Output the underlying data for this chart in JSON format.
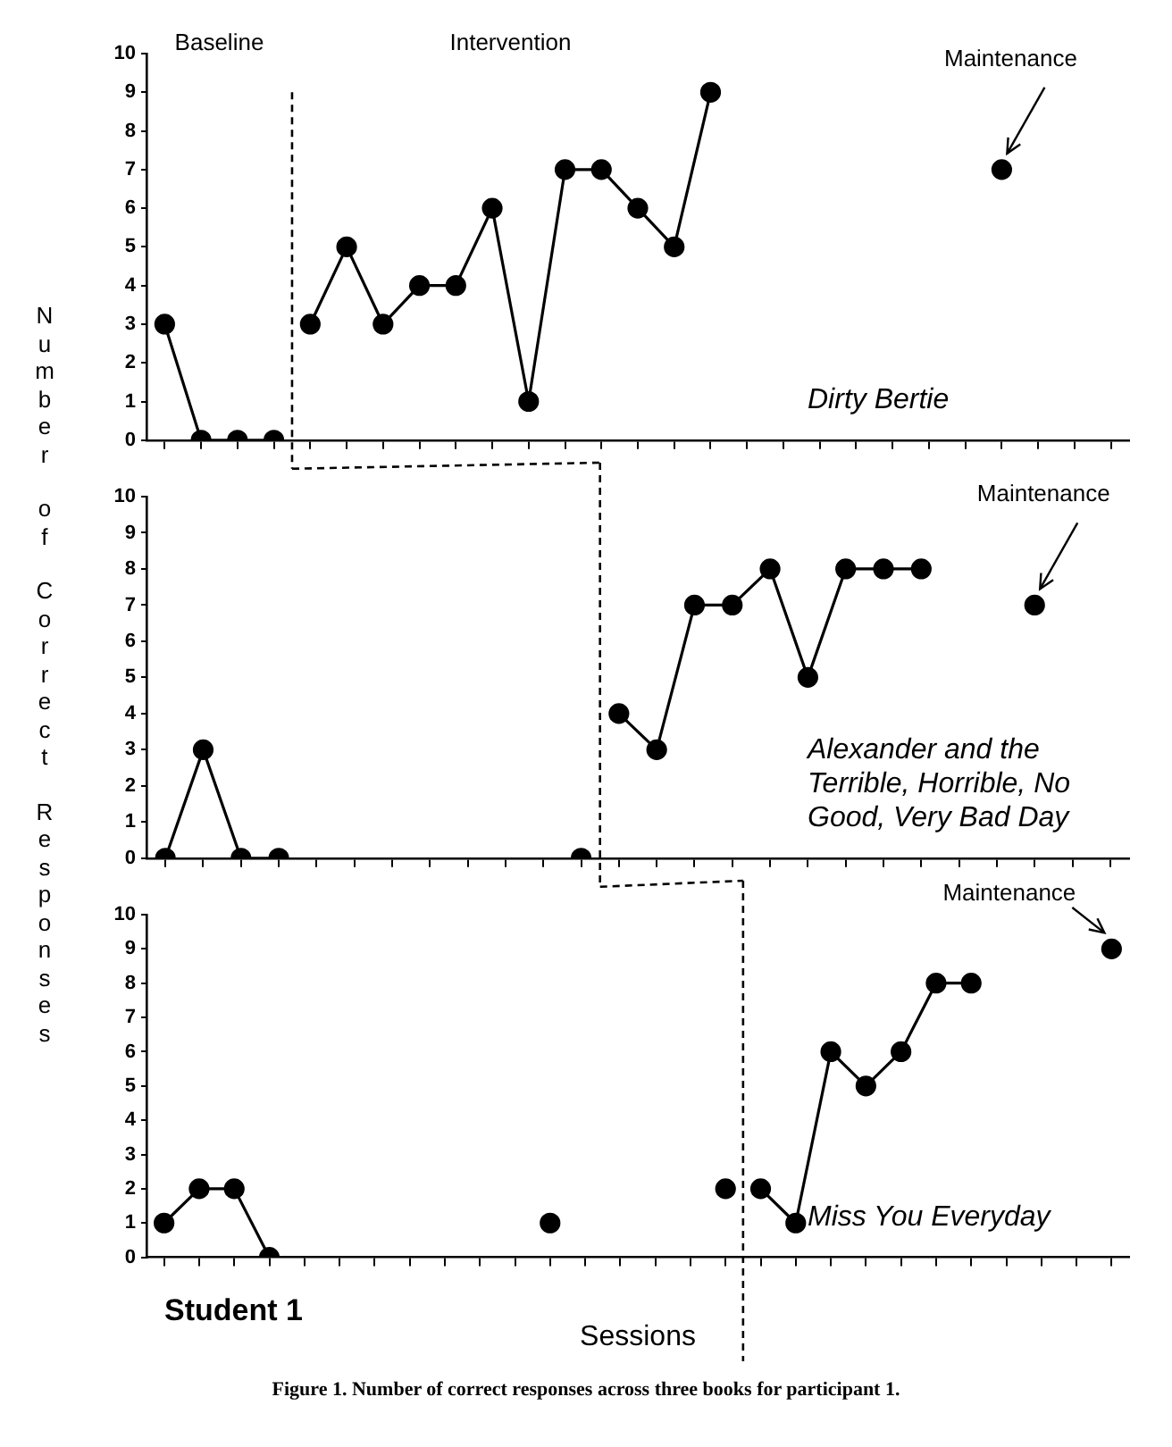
{
  "chart_data": [
    {
      "type": "line",
      "title": "Dirty Bertie",
      "ylabel": "Number of Correct Responses",
      "marker": "circle",
      "grid": false,
      "tick_labels": "y",
      "categories": [
        null,
        null,
        null,
        null,
        null,
        null,
        null,
        null,
        null,
        null,
        null,
        null,
        null,
        null,
        null,
        null,
        null,
        null,
        null,
        null,
        null,
        null,
        null,
        null,
        null,
        null,
        null
      ],
      "ylim": [
        0,
        10
      ],
      "yticks": [
        0,
        1,
        2,
        3,
        4,
        5,
        6,
        7,
        8,
        9,
        10
      ],
      "series": [
        {
          "color": "#000000",
          "values": [
            3,
            0,
            0,
            0,
            null,
            null,
            null,
            null,
            null,
            null,
            null,
            null,
            null,
            null,
            null,
            null,
            null,
            null,
            null,
            null,
            null,
            null,
            null,
            null,
            null,
            null,
            null
          ]
        },
        {
          "color": "#000000",
          "values": [
            null,
            null,
            null,
            null,
            3,
            5,
            3,
            4,
            4,
            6,
            1,
            7,
            7,
            6,
            5,
            9,
            null,
            null,
            null,
            null,
            null,
            null,
            null,
            null,
            null,
            null,
            null
          ]
        },
        {
          "color": "#000000",
          "values": [
            null,
            null,
            null,
            null,
            null,
            null,
            null,
            null,
            null,
            null,
            null,
            null,
            null,
            null,
            null,
            null,
            null,
            null,
            null,
            null,
            null,
            null,
            null,
            7,
            null,
            null,
            null
          ]
        }
      ],
      "annotations": [
        "Baseline",
        "Intervention",
        "Maintenance"
      ]
    },
    {
      "type": "line",
      "title": "Alexander and the Terrible, Horrible, No Good, Very Bad Day",
      "marker": "circle",
      "grid": false,
      "tick_labels": "y",
      "categories": [
        null,
        null,
        null,
        null,
        null,
        null,
        null,
        null,
        null,
        null,
        null,
        null,
        null,
        null,
        null,
        null,
        null,
        null,
        null,
        null,
        null,
        null,
        null,
        null,
        null,
        null
      ],
      "ylim": [
        0,
        10
      ],
      "yticks": [
        0,
        1,
        2,
        3,
        4,
        5,
        6,
        7,
        8,
        9,
        10
      ],
      "series": [
        {
          "color": "#000000",
          "values": [
            0,
            3,
            0,
            0,
            null,
            null,
            null,
            null,
            null,
            null,
            null,
            null,
            null,
            null,
            null,
            null,
            null,
            null,
            null,
            null,
            null,
            null,
            null,
            null,
            null,
            null
          ]
        },
        {
          "color": "#000000",
          "values": [
            null,
            null,
            null,
            null,
            null,
            null,
            null,
            null,
            null,
            null,
            null,
            0,
            null,
            null,
            null,
            null,
            null,
            null,
            null,
            null,
            null,
            null,
            null,
            null,
            null,
            null
          ]
        },
        {
          "color": "#000000",
          "values": [
            null,
            null,
            null,
            null,
            null,
            null,
            null,
            null,
            null,
            null,
            null,
            null,
            4,
            3,
            7,
            7,
            8,
            5,
            8,
            8,
            8,
            null,
            null,
            null,
            null,
            null
          ]
        },
        {
          "color": "#000000",
          "values": [
            null,
            null,
            null,
            null,
            null,
            null,
            null,
            null,
            null,
            null,
            null,
            null,
            null,
            null,
            null,
            null,
            null,
            null,
            null,
            null,
            null,
            null,
            null,
            7,
            null,
            null
          ]
        }
      ],
      "annotations": [
        "Maintenance"
      ]
    },
    {
      "type": "line",
      "title": "Miss You Everyday",
      "xlabel": "Sessions",
      "marker": "circle",
      "grid": false,
      "tick_labels": "y",
      "categories": [
        null,
        null,
        null,
        null,
        null,
        null,
        null,
        null,
        null,
        null,
        null,
        null,
        null,
        null,
        null,
        null,
        null,
        null,
        null,
        null,
        null,
        null,
        null,
        null,
        null,
        null,
        null,
        null
      ],
      "ylim": [
        0,
        10
      ],
      "yticks": [
        0,
        1,
        2,
        3,
        4,
        5,
        6,
        7,
        8,
        9,
        10
      ],
      "series": [
        {
          "color": "#000000",
          "values": [
            1,
            2,
            2,
            0,
            null,
            null,
            null,
            null,
            null,
            null,
            null,
            null,
            null,
            null,
            null,
            null,
            null,
            null,
            null,
            null,
            null,
            null,
            null,
            null,
            null,
            null,
            null,
            null
          ]
        },
        {
          "color": "#000000",
          "values": [
            null,
            null,
            null,
            null,
            null,
            null,
            null,
            null,
            null,
            null,
            null,
            1,
            null,
            null,
            null,
            null,
            null,
            null,
            null,
            null,
            null,
            null,
            null,
            null,
            null,
            null,
            null,
            null
          ]
        },
        {
          "color": "#000000",
          "values": [
            null,
            null,
            null,
            null,
            null,
            null,
            null,
            null,
            null,
            null,
            null,
            null,
            null,
            null,
            null,
            null,
            2,
            null,
            null,
            null,
            null,
            null,
            null,
            null,
            null,
            null,
            null,
            null
          ]
        },
        {
          "color": "#000000",
          "values": [
            null,
            null,
            null,
            null,
            null,
            null,
            null,
            null,
            null,
            null,
            null,
            null,
            null,
            null,
            null,
            null,
            null,
            2,
            1,
            6,
            5,
            6,
            8,
            8,
            null,
            null,
            null,
            null
          ]
        },
        {
          "color": "#000000",
          "values": [
            null,
            null,
            null,
            null,
            null,
            null,
            null,
            null,
            null,
            null,
            null,
            null,
            null,
            null,
            null,
            null,
            null,
            null,
            null,
            null,
            null,
            null,
            null,
            null,
            null,
            null,
            null,
            9
          ]
        }
      ],
      "annotations": [
        "Maintenance",
        "Student 1",
        "Figure 1.  Number of correct responses across three books for participant 1."
      ]
    }
  ]
}
